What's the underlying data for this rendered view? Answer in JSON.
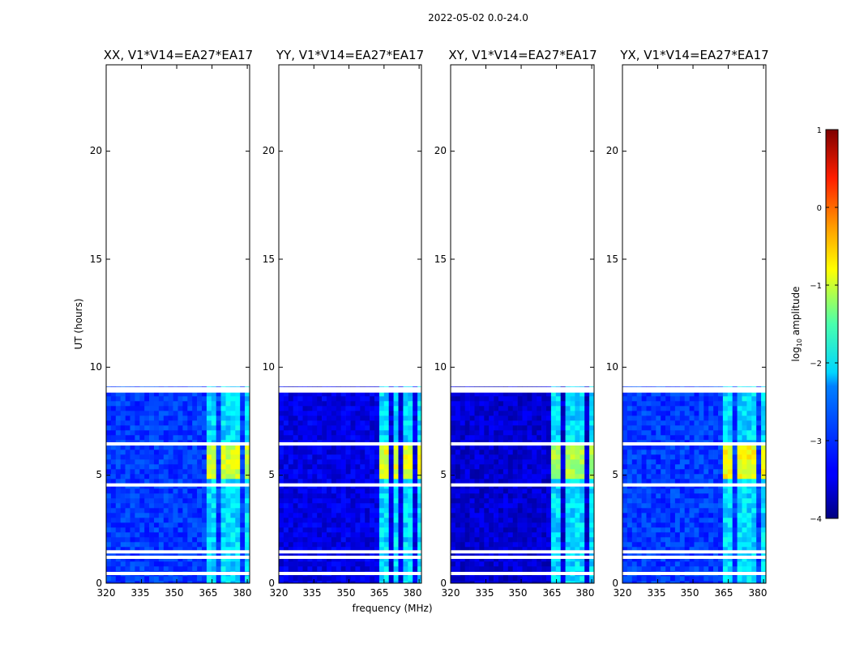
{
  "chart_data": {
    "type": "heatmap",
    "suptitle": "2022-05-02 0.0-24.0",
    "xlabel": "frequency (MHz)",
    "ylabel": "UT (hours)",
    "xlim": [
      320,
      381
    ],
    "ylim": [
      0,
      24
    ],
    "xticks": [
      320,
      335,
      350,
      365,
      380
    ],
    "yticks": [
      0,
      5,
      10,
      15,
      20
    ],
    "data_hours": [
      0,
      9.1
    ],
    "flagged_rows_hours": [
      0.45,
      1.2,
      1.45,
      4.55,
      6.45,
      8.9,
      9.0
    ],
    "colorbar": {
      "label": "log",
      "label_sub": "10",
      "label_rest": " amplitude",
      "range": [
        -4,
        1
      ],
      "ticks": [
        "1",
        "0",
        "−1",
        "−2",
        "−3",
        "−4"
      ],
      "colormap": "jet"
    },
    "panels": [
      {
        "title": "XX, V1*V14=EA27*EA17",
        "background_log_amp": -3.1,
        "rfi_channels_mhz": [
          [
            362.5,
            366.5
          ],
          [
            368.0,
            371.0
          ],
          [
            372.5,
            376.0
          ],
          [
            377.5,
            381.0
          ]
        ],
        "peak_log_amp": -1.1
      },
      {
        "title": "YY, V1*V14=EA27*EA17",
        "background_log_amp": -3.5,
        "rfi_channels_mhz": [
          [
            362.5,
            366.5
          ],
          [
            368.0,
            371.0
          ],
          [
            372.5,
            376.0
          ],
          [
            377.5,
            381.0
          ]
        ],
        "peak_log_amp": -1.0
      },
      {
        "title": "XY, V1*V14=EA27*EA17",
        "background_log_amp": -3.6,
        "rfi_channels_mhz": [
          [
            362.5,
            366.5
          ],
          [
            368.0,
            371.0
          ],
          [
            372.5,
            376.0
          ],
          [
            377.5,
            381.0
          ]
        ],
        "peak_log_amp": -1.3
      },
      {
        "title": "YX, V1*V14=EA27*EA17",
        "background_log_amp": -3.1,
        "rfi_channels_mhz": [
          [
            362.5,
            366.5
          ],
          [
            368.0,
            371.0
          ],
          [
            372.5,
            376.0
          ],
          [
            377.5,
            381.0
          ]
        ],
        "peak_log_amp": -0.9
      }
    ]
  }
}
